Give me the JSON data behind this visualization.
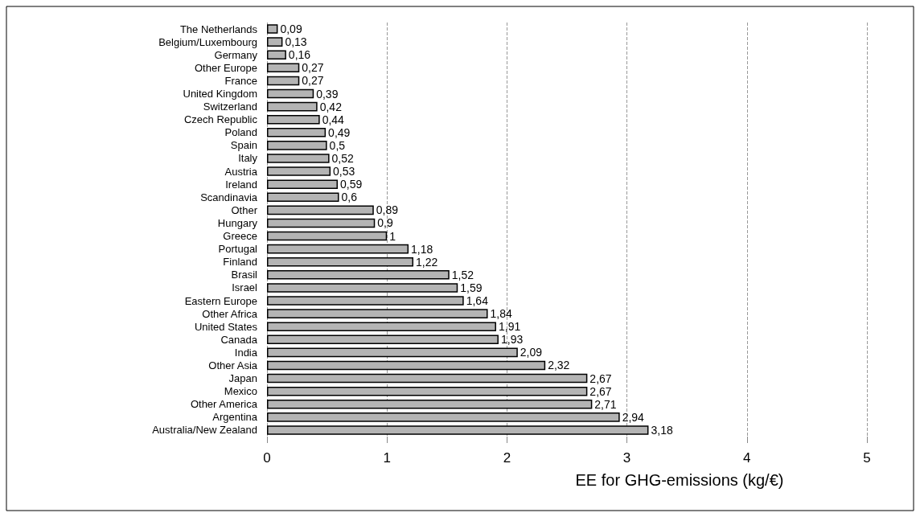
{
  "chart_data": {
    "type": "bar",
    "orientation": "horizontal",
    "xlabel": "EE for GHG-emissions (kg/€)",
    "categories": [
      "The Netherlands",
      "Belgium/Luxembourg",
      "Germany",
      "Other Europe",
      "France",
      "United Kingdom",
      "Switzerland",
      "Czech Republic",
      "Poland",
      "Spain",
      "Italy",
      "Austria",
      "Ireland",
      "Scandinavia",
      "Other",
      "Hungary",
      "Greece",
      "Portugal",
      "Finland",
      "Brasil",
      "Israel",
      "Eastern Europe",
      "Other Africa",
      "United States",
      "Canada",
      "India",
      "Other Asia",
      "Japan",
      "Mexico",
      "Other America",
      "Argentina",
      "Australia/New Zealand"
    ],
    "values": [
      0.09,
      0.13,
      0.16,
      0.27,
      0.27,
      0.39,
      0.42,
      0.44,
      0.49,
      0.5,
      0.52,
      0.53,
      0.59,
      0.6,
      0.89,
      0.9,
      1,
      1.18,
      1.22,
      1.52,
      1.59,
      1.64,
      1.84,
      1.91,
      1.93,
      2.09,
      2.32,
      2.67,
      2.67,
      2.71,
      2.94,
      3.18
    ],
    "value_labels": [
      "0,09",
      "0,13",
      "0,16",
      "0,27",
      "0,27",
      "0,39",
      "0,42",
      "0,44",
      "0,49",
      "0,5",
      "0,52",
      "0,53",
      "0,59",
      "0,6",
      "0,89",
      "0,9",
      "1",
      "1,18",
      "1,22",
      "1,52",
      "1,59",
      "1,64",
      "1,84",
      "1,91",
      "1,93",
      "2,09",
      "2,32",
      "2,67",
      "2,67",
      "2,71",
      "2,94",
      "3,18"
    ],
    "color": "#b4b4b4",
    "xlim": [
      0,
      5
    ],
    "xticks": [
      0,
      1,
      2,
      3,
      4,
      5
    ],
    "grid": "x"
  }
}
